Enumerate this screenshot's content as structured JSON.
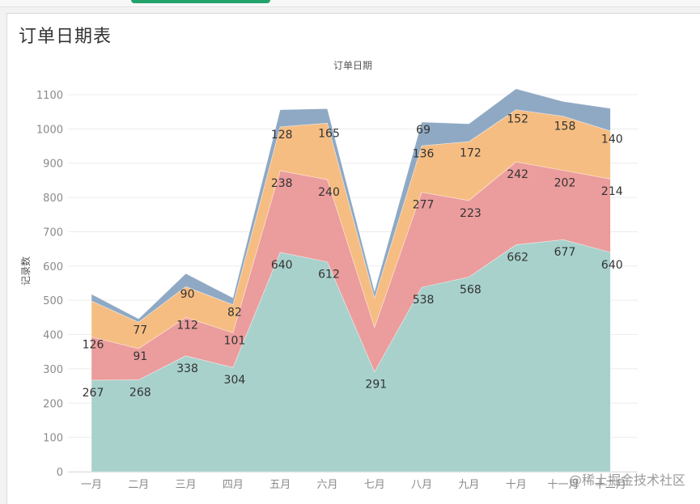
{
  "sheet": {
    "title": "订单日期表"
  },
  "watermark": "@稀土掘金技术社区",
  "chart_data": {
    "type": "area",
    "stacked": true,
    "title": "订单日期",
    "xlabel": "",
    "ylabel": "记录数",
    "ylim": [
      0,
      1150
    ],
    "y_ticks": [
      0,
      100,
      200,
      300,
      400,
      500,
      600,
      700,
      800,
      900,
      1000,
      1100
    ],
    "grid": true,
    "categories": [
      "一月",
      "二月",
      "三月",
      "四月",
      "五月",
      "六月",
      "七月",
      "八月",
      "九月",
      "十月",
      "十一月",
      "十二月"
    ],
    "series": [
      {
        "color": "#a8d1cc",
        "values": [
          267,
          268,
          338,
          304,
          640,
          612,
          291,
          538,
          568,
          662,
          677,
          640
        ],
        "labels": [
          "267",
          "268",
          "338",
          "304",
          "640",
          "612",
          "291",
          "538",
          "568",
          "662",
          "677",
          "640"
        ]
      },
      {
        "color": "#eb9c9c",
        "values": [
          126,
          91,
          112,
          101,
          238,
          240,
          130,
          277,
          223,
          242,
          202,
          214
        ],
        "labels": [
          "126",
          "91",
          "112",
          "101",
          "238",
          "240",
          "",
          "277",
          "223",
          "242",
          "202",
          "214"
        ]
      },
      {
        "color": "#f6bd82",
        "values": [
          105,
          77,
          90,
          82,
          128,
          165,
          85,
          136,
          172,
          152,
          158,
          140
        ],
        "labels": [
          "",
          "77",
          "90",
          "82",
          "128",
          "165",
          "",
          "136",
          "172",
          "152",
          "158",
          "140"
        ]
      },
      {
        "color": "#8fa9c4",
        "values": [
          20,
          10,
          38,
          20,
          50,
          42,
          20,
          69,
          52,
          61,
          43,
          66
        ],
        "labels": [
          "",
          "",
          "",
          "",
          "",
          "",
          "",
          "69",
          "",
          "",
          "",
          ""
        ]
      }
    ]
  }
}
